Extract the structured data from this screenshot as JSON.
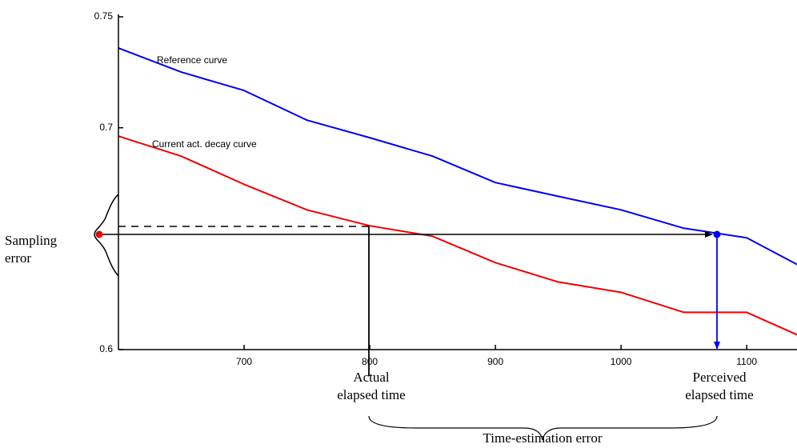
{
  "chart_data": {
    "type": "line",
    "x": [
      600,
      650,
      700,
      750,
      800,
      850,
      900,
      950,
      1000,
      1050,
      1100,
      1140
    ],
    "series": [
      {
        "name": "Reference curve",
        "color": "#0000ee",
        "values": [
          0.7359,
          0.7251,
          0.7168,
          0.7034,
          0.6955,
          0.6872,
          0.6753,
          0.6691,
          0.663,
          0.6547,
          0.6504,
          0.6384
        ]
      },
      {
        "name": "Current act. decay curve",
        "color": "#ee0000",
        "values": [
          0.6962,
          0.6872,
          0.6745,
          0.663,
          0.6558,
          0.6511,
          0.6392,
          0.6305,
          0.6258,
          0.6168,
          0.6168,
          0.6067
        ]
      }
    ],
    "xlim": [
      600,
      1140
    ],
    "ylim": [
      0.6,
      0.75
    ],
    "xticks": [
      700,
      800,
      900,
      1000,
      1100
    ],
    "yticks": [
      0.6,
      0.7,
      0.75
    ],
    "annotations": {
      "sampling_error": [
        "Sampling",
        "error"
      ],
      "actual": [
        "Actual",
        "elapsed time"
      ],
      "perceived": [
        "Perceived",
        "elapsed time"
      ],
      "estimation_error": "Time-estimation error"
    }
  }
}
